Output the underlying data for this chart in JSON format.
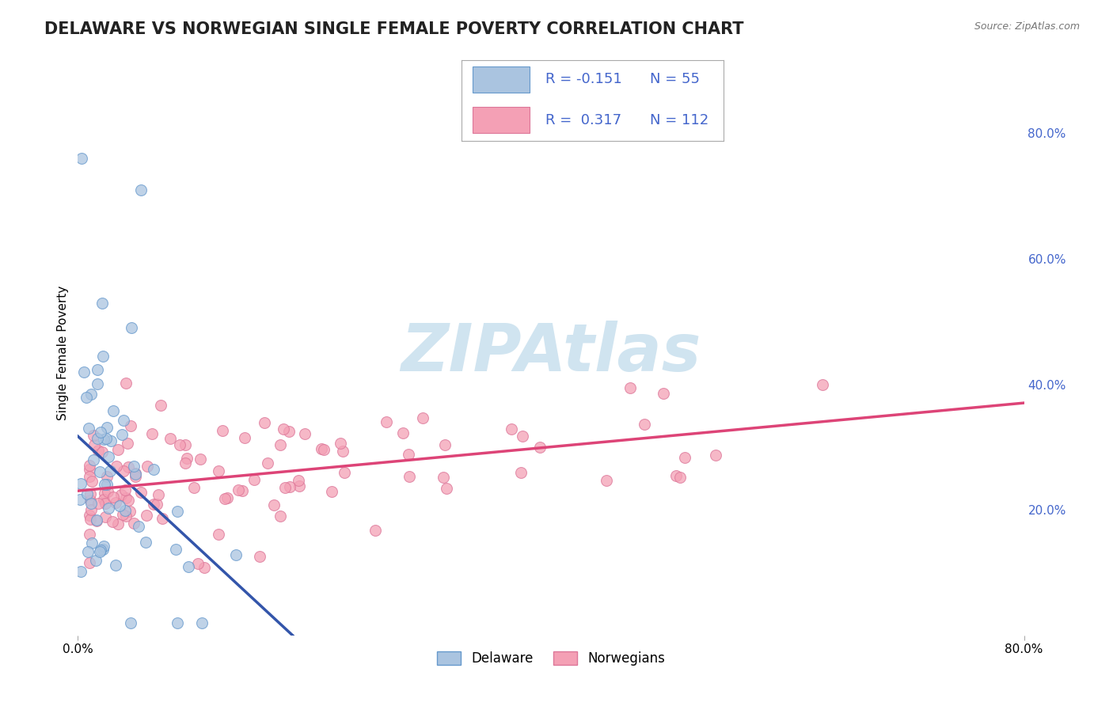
{
  "title": "DELAWARE VS NORWEGIAN SINGLE FEMALE POVERTY CORRELATION CHART",
  "source_text": "Source: ZipAtlas.com",
  "ylabel": "Single Female Poverty",
  "xlim": [
    0.0,
    0.8
  ],
  "ylim": [
    0.0,
    0.9
  ],
  "y_tick_right": [
    0.2,
    0.4,
    0.6,
    0.8
  ],
  "y_tick_right_labels": [
    "20.0%",
    "40.0%",
    "60.0%",
    "80.0%"
  ],
  "delaware_color": "#aac4e0",
  "delaware_edge": "#6699cc",
  "norwegian_color": "#f4a0b5",
  "norwegian_edge": "#dd7799",
  "delaware_line_color": "#3355aa",
  "norwegian_line_color": "#dd4477",
  "watermark_color": "#d0e4f0",
  "background_color": "#ffffff",
  "grid_color": "#cccccc",
  "legend_text_color": "#4466cc",
  "title_fontsize": 15,
  "axis_label_fontsize": 11,
  "tick_fontsize": 11,
  "marker_size": 100,
  "legend_R_values": [
    "-0.151",
    " 0.317"
  ],
  "legend_N_values": [
    "55",
    "112"
  ],
  "legend_labels": [
    "Delaware",
    "Norwegians"
  ],
  "del_seed": 7,
  "nor_seed": 13
}
